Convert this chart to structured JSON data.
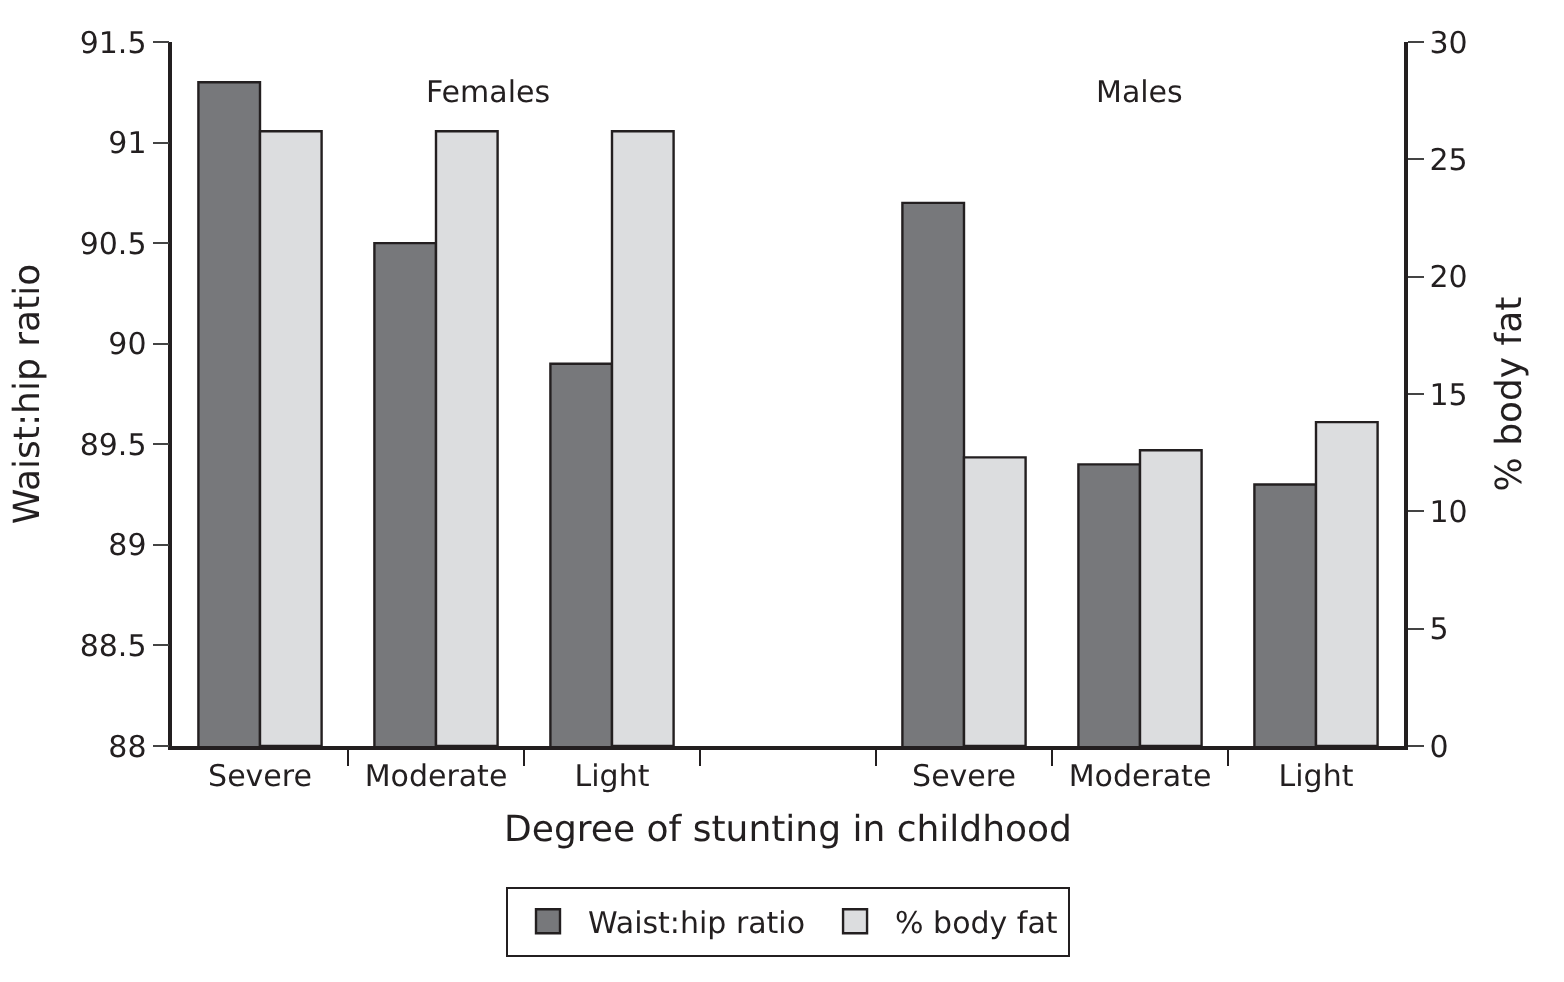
{
  "chart_data": {
    "type": "bar",
    "categories": [
      "Severe",
      "Moderate",
      "Light",
      null,
      "Severe",
      "Moderate",
      "Light"
    ],
    "series": [
      {
        "name": "Waist:hip ratio",
        "color": "#77787b",
        "values": [
          91.3,
          90.5,
          89.9,
          null,
          90.7,
          89.4,
          89.3
        ]
      },
      {
        "name": "% body fat",
        "color": "#dcdddf",
        "axis": "y2",
        "values": [
          26.2,
          26.2,
          26.2,
          null,
          12.3,
          12.6,
          13.8
        ]
      }
    ],
    "xlabel": "Degree of stunting in childhood",
    "ylabel": "Waist:hip ratio",
    "y2label": "% body fat",
    "ylim": [
      88,
      91.5
    ],
    "yticks": [
      88,
      88.5,
      89,
      89.5,
      90,
      90.5,
      91,
      91.5
    ],
    "y2lim": [
      0,
      30
    ],
    "y2ticks": [
      0,
      5,
      10,
      15,
      20,
      25,
      30
    ],
    "annotations": [
      "Females",
      "Males"
    ],
    "legend": "bottom"
  }
}
